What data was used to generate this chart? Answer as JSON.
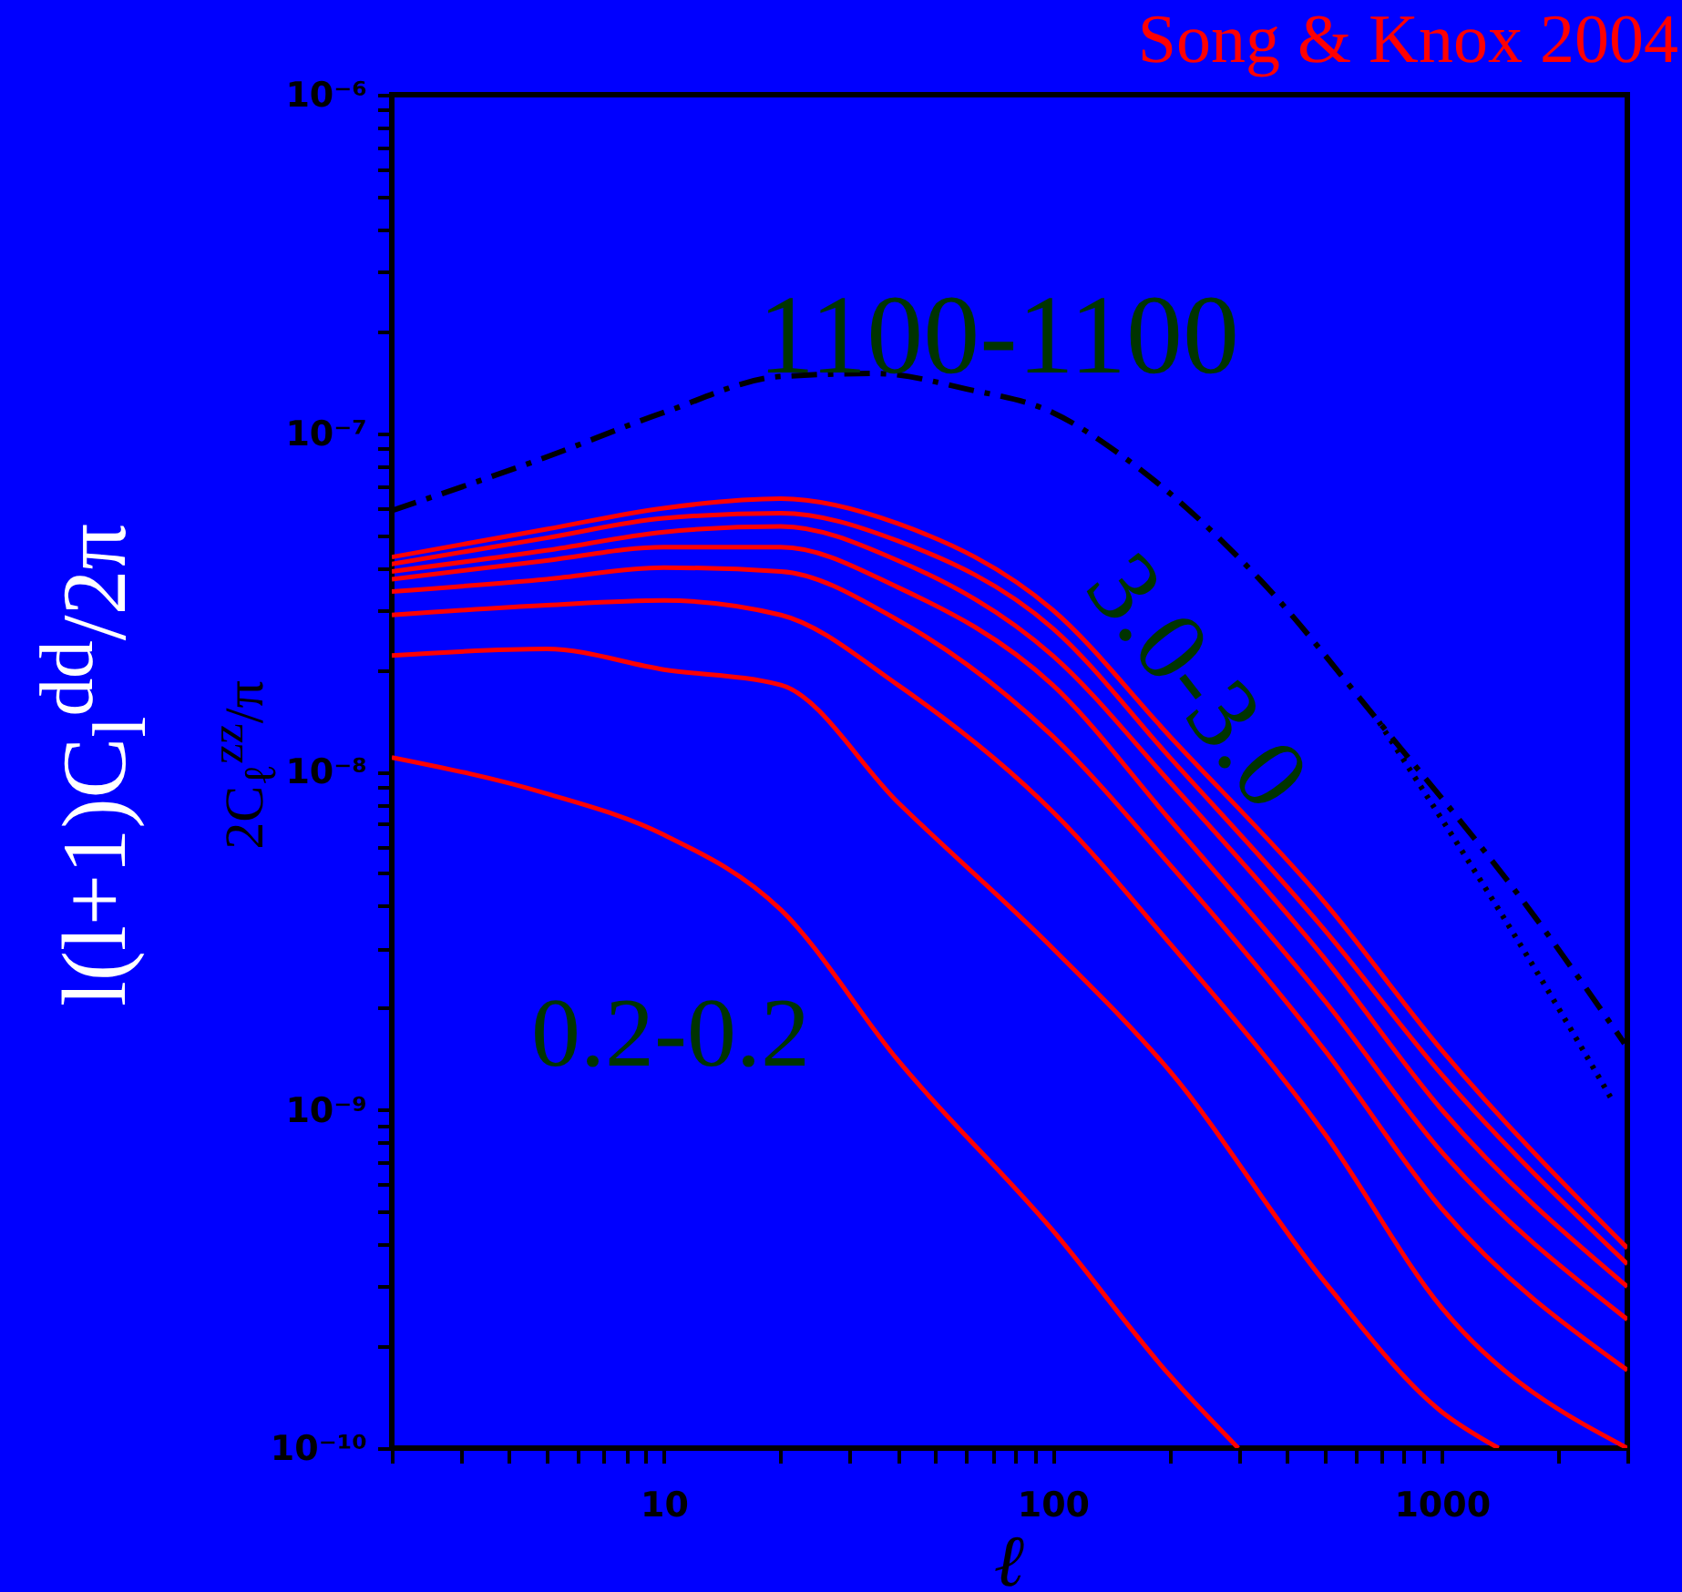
{
  "chart_data": {
    "type": "line",
    "title": "Song & Knox 2004",
    "xlabel": "ℓ",
    "ylabel": "l(l+1)C$_{l}$$^{dd}$/2π",
    "annotations": [
      "1100-1100",
      "3.0-3.0",
      "0.2-0.2",
      "2C$_{ℓ}$$^{zz}$/π"
    ],
    "log": "xy",
    "grid": false,
    "line_style": "solid",
    "marker": "none",
    "xlim": [
      2,
      3000
    ],
    "ylim": [
      1e-10,
      1e-06
    ],
    "xticks": [
      {
        "value": 2,
        "label": null
      },
      {
        "value": 3,
        "label": null
      },
      {
        "value": 4,
        "label": null
      },
      {
        "value": 5,
        "label": null
      },
      {
        "value": 6,
        "label": null
      },
      {
        "value": 7,
        "label": null
      },
      {
        "value": 8,
        "label": null
      },
      {
        "value": 9,
        "label": null
      },
      10,
      {
        "value": 20,
        "label": null
      },
      {
        "value": 30,
        "label": null
      },
      {
        "value": 40,
        "label": null
      },
      {
        "value": 50,
        "label": null
      },
      {
        "value": 60,
        "label": null
      },
      {
        "value": 70,
        "label": null
      },
      {
        "value": 80,
        "label": null
      },
      {
        "value": 90,
        "label": null
      },
      100,
      {
        "value": 200,
        "label": null
      },
      {
        "value": 300,
        "label": null
      },
      {
        "value": 400,
        "label": null
      },
      {
        "value": 500,
        "label": null
      },
      {
        "value": 600,
        "label": null
      },
      {
        "value": 700,
        "label": null
      },
      {
        "value": 800,
        "label": null
      },
      {
        "value": 900,
        "label": null
      },
      1000,
      {
        "value": 2000,
        "label": null
      },
      {
        "value": 3000,
        "label": null
      }
    ],
    "yticks": [
      {
        "value": 1e-10,
        "label": "10⁻¹⁰"
      },
      {
        "value": 2e-10,
        "label": null
      },
      {
        "value": 3e-10,
        "label": null
      },
      {
        "value": 4e-10,
        "label": null
      },
      {
        "value": 5e-10,
        "label": null
      },
      {
        "value": 6e-10,
        "label": null
      },
      {
        "value": 7e-10,
        "label": null
      },
      {
        "value": 8e-10,
        "label": null
      },
      {
        "value": 9e-10,
        "label": null
      },
      {
        "value": 1e-09,
        "label": "10⁻⁹"
      },
      {
        "value": 2e-09,
        "label": null
      },
      {
        "value": 3e-09,
        "label": null
      },
      {
        "value": 4e-09,
        "label": null
      },
      {
        "value": 5e-09,
        "label": null
      },
      {
        "value": 6e-09,
        "label": null
      },
      {
        "value": 7e-09,
        "label": null
      },
      {
        "value": 8e-09,
        "label": null
      },
      {
        "value": 9e-09,
        "label": null
      },
      {
        "value": 1e-08,
        "label": "10⁻⁸"
      },
      {
        "value": 2e-08,
        "label": null
      },
      {
        "value": 3e-08,
        "label": null
      },
      {
        "value": 4e-08,
        "label": null
      },
      {
        "value": 5e-08,
        "label": null
      },
      {
        "value": 6e-08,
        "label": null
      },
      {
        "value": 7e-08,
        "label": null
      },
      {
        "value": 8e-08,
        "label": null
      },
      {
        "value": 9e-08,
        "label": null
      },
      {
        "value": 1e-07,
        "label": "10⁻⁷"
      },
      {
        "value": 2e-07,
        "label": null
      },
      {
        "value": 3e-07,
        "label": null
      },
      {
        "value": 4e-07,
        "label": null
      },
      {
        "value": 5e-07,
        "label": null
      },
      {
        "value": 6e-07,
        "label": null
      },
      {
        "value": 7e-07,
        "label": null
      },
      {
        "value": 8e-07,
        "label": null
      },
      {
        "value": 9e-07,
        "label": null
      },
      {
        "value": 1e-06,
        "label": "10⁻⁶"
      }
    ],
    "series": [
      {
        "color": "#ff0000",
        "x": [
          2,
          5,
          10,
          20,
          40,
          100,
          200,
          300
        ],
        "values": [
          1.1e-08,
          8.6e-09,
          6.5e-09,
          3.9e-09,
          1.4e-09,
          4.4e-10,
          1.64e-10,
          1e-10
        ]
      },
      {
        "color": "#ff0000",
        "x": [
          2,
          5,
          10,
          20,
          40,
          100,
          200,
          500,
          1000,
          1400
        ],
        "values": [
          2.2e-08,
          2.3e-08,
          2e-08,
          1.8e-08,
          8.1e-09,
          3e-09,
          1.3e-09,
          3.1e-10,
          1.28e-10,
          1e-10
        ]
      },
      {
        "color": "#ff0000",
        "x": [
          2,
          5,
          10,
          20,
          40,
          100,
          200,
          500,
          1000,
          3000
        ],
        "values": [
          2.9e-08,
          3.1e-08,
          3.2e-08,
          2.9e-08,
          1.8e-08,
          7.6e-09,
          3.1e-09,
          8.5e-10,
          2.6e-10,
          1e-10
        ]
      },
      {
        "color": "#ff0000",
        "x": [
          2,
          5,
          10,
          20,
          40,
          100,
          200,
          500,
          1000,
          3000
        ],
        "values": [
          3.4e-08,
          3.7e-08,
          4e-08,
          3.9e-08,
          2.8e-08,
          1.27e-08,
          5.3e-09,
          1.5e-09,
          5.1e-10,
          1.7e-10
        ]
      },
      {
        "color": "#ff0000",
        "x": [
          2,
          5,
          10,
          20,
          40,
          100,
          200,
          500,
          1000,
          3000
        ],
        "values": [
          3.7e-08,
          4.2e-08,
          4.6e-08,
          4.6e-08,
          3.5e-08,
          1.8e-08,
          7.2e-09,
          2.1e-09,
          7.5e-10,
          2.4e-10
        ]
      },
      {
        "color": "#ff0000",
        "x": [
          2,
          5,
          10,
          20,
          40,
          100,
          200,
          500,
          1000,
          3000
        ],
        "values": [
          3.9e-08,
          4.5e-08,
          5.1e-08,
          5.3e-08,
          4.2e-08,
          2.2e-08,
          9.3e-09,
          2.8e-09,
          1e-09,
          3e-10
        ]
      },
      {
        "color": "#ff0000",
        "x": [
          2,
          5,
          10,
          20,
          40,
          100,
          200,
          500,
          1000,
          3000
        ],
        "values": [
          4.1e-08,
          4.9e-08,
          5.6e-08,
          5.8e-08,
          4.8e-08,
          2.65e-08,
          1.1e-08,
          3.4e-09,
          1.27e-09,
          3.5e-10
        ]
      },
      {
        "color": "#ff0000",
        "x": [
          2,
          5,
          10,
          20,
          40,
          100,
          200,
          500,
          1000,
          3000
        ],
        "values": [
          4.3e-08,
          5.2e-08,
          6e-08,
          6.4e-08,
          5.4e-08,
          3e-08,
          1.27e-08,
          4.1e-09,
          1.5e-09,
          3.9e-10
        ]
      },
      {
        "color": "#000000",
        "line_style": "dashed",
        "x": [
          2,
          5,
          10,
          20,
          35,
          60,
          100,
          150,
          340,
          690,
          1740,
          2950
        ],
        "values": [
          5.9e-08,
          8.5e-08,
          1.15e-07,
          1.47e-07,
          1.5e-07,
          1.35e-07,
          1.15e-07,
          8.6e-08,
          3.7e-08,
          1.4e-08,
          3.7e-09,
          1.57e-09
        ]
      },
      {
        "color": "#000000",
        "line_style": "dotted",
        "x": [
          690,
          1740,
          2740
        ],
        "values": [
          1.4e-08,
          2.6e-09,
          1.07e-09
        ]
      }
    ]
  }
}
